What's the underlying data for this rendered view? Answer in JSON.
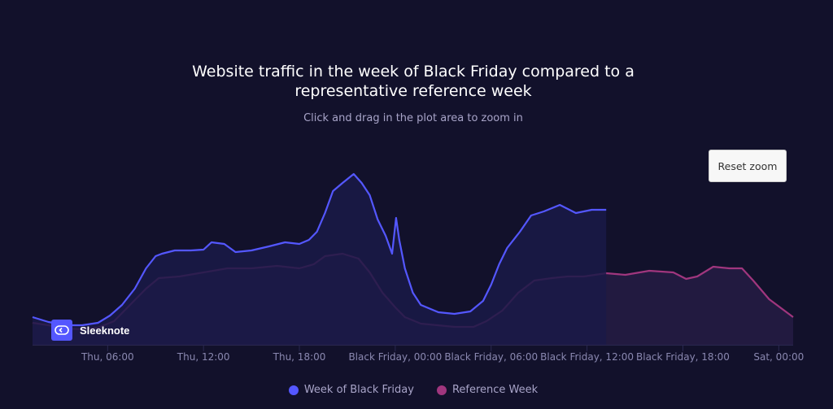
{
  "chart_data": {
    "type": "area",
    "title": "Website traffic in the week of Black Friday compared to a representative reference week",
    "title_lines": [
      "Website traffic in the week of Black Friday compared to a",
      "representative reference week"
    ],
    "subtitle": "Click and drag in the plot area to zoom in",
    "x_unit": "hours since Thu 00:00",
    "xlim": [
      1.3,
      48.9
    ],
    "ylim": [
      0,
      220
    ],
    "x_ticks": [
      {
        "h": 6,
        "label": "Thu, 06:00"
      },
      {
        "h": 12,
        "label": "Thu, 12:00"
      },
      {
        "h": 18,
        "label": "Thu, 18:00"
      },
      {
        "h": 24,
        "label": "Black Friday, 00:00"
      },
      {
        "h": 30,
        "label": "Black Friday, 06:00"
      },
      {
        "h": 36,
        "label": "Black Friday, 12:00"
      },
      {
        "h": 42,
        "label": "Black Friday, 18:00"
      },
      {
        "h": 48,
        "label": "Sat, 00:00"
      }
    ],
    "legend_position": "bottom-center",
    "series": [
      {
        "name": "Week of Black Friday",
        "color": "#5457ff",
        "fill": "#1a1a48",
        "points": [
          [
            1.3,
            34
          ],
          [
            2.3,
            28
          ],
          [
            3.4,
            24
          ],
          [
            4.4,
            24
          ],
          [
            5.4,
            27
          ],
          [
            6.15,
            36
          ],
          [
            6.9,
            49
          ],
          [
            7.7,
            69
          ],
          [
            8.4,
            94
          ],
          [
            9.0,
            109
          ],
          [
            9.4,
            112
          ],
          [
            10.2,
            116
          ],
          [
            11.2,
            116
          ],
          [
            12,
            117
          ],
          [
            12.5,
            126
          ],
          [
            13.3,
            124
          ],
          [
            14,
            114
          ],
          [
            15,
            116
          ],
          [
            16.1,
            121
          ],
          [
            17.1,
            126
          ],
          [
            18,
            124
          ],
          [
            18.6,
            129
          ],
          [
            19.1,
            139
          ],
          [
            19.6,
            162
          ],
          [
            20.1,
            189
          ],
          [
            20.7,
            199
          ],
          [
            21.4,
            210
          ],
          [
            21.9,
            199
          ],
          [
            22.4,
            184
          ],
          [
            22.9,
            154
          ],
          [
            23.4,
            134
          ],
          [
            23.8,
            112
          ],
          [
            24.05,
            156
          ],
          [
            24.25,
            129
          ],
          [
            24.6,
            94
          ],
          [
            25.1,
            64
          ],
          [
            25.6,
            49
          ],
          [
            26.7,
            40
          ],
          [
            27.7,
            38
          ],
          [
            28.7,
            41
          ],
          [
            29.5,
            54
          ],
          [
            30,
            74
          ],
          [
            30.5,
            99
          ],
          [
            31,
            119
          ],
          [
            31.8,
            139
          ],
          [
            32.5,
            159
          ],
          [
            33.3,
            164
          ],
          [
            34.3,
            172
          ],
          [
            35.3,
            162
          ],
          [
            36.3,
            166
          ],
          [
            37.2,
            166
          ]
        ]
      },
      {
        "name": "Reference Week",
        "color": "#a0367e",
        "fill": "#221a40",
        "points": [
          [
            1.3,
            27
          ],
          [
            2.3,
            24
          ],
          [
            3.4,
            20
          ],
          [
            4.4,
            19
          ],
          [
            5.4,
            21
          ],
          [
            6.4,
            29
          ],
          [
            7.4,
            49
          ],
          [
            8.4,
            69
          ],
          [
            9.2,
            82
          ],
          [
            10.5,
            84
          ],
          [
            12,
            89
          ],
          [
            13.5,
            94
          ],
          [
            15,
            94
          ],
          [
            16.6,
            97
          ],
          [
            18,
            94
          ],
          [
            18.9,
            99
          ],
          [
            19.6,
            109
          ],
          [
            20.7,
            112
          ],
          [
            21.7,
            106
          ],
          [
            22.4,
            89
          ],
          [
            23.2,
            64
          ],
          [
            24,
            46
          ],
          [
            24.6,
            34
          ],
          [
            25.6,
            26
          ],
          [
            27.7,
            22
          ],
          [
            28.9,
            22
          ],
          [
            29.7,
            29
          ],
          [
            30.7,
            42
          ],
          [
            31.7,
            64
          ],
          [
            32.7,
            79
          ],
          [
            33.8,
            82
          ],
          [
            34.8,
            84
          ],
          [
            35.8,
            84
          ],
          [
            37.2,
            88
          ],
          [
            38.4,
            86
          ],
          [
            39.9,
            91
          ],
          [
            41.4,
            89
          ],
          [
            42.2,
            81
          ],
          [
            42.9,
            84
          ],
          [
            43.9,
            96
          ],
          [
            44.9,
            94
          ],
          [
            45.7,
            94
          ],
          [
            46.4,
            79
          ],
          [
            47.4,
            56
          ],
          [
            48.9,
            34
          ]
        ]
      }
    ]
  },
  "branding": {
    "name": "Sleeknote"
  },
  "controls": {
    "reset_zoom": "Reset zoom"
  }
}
